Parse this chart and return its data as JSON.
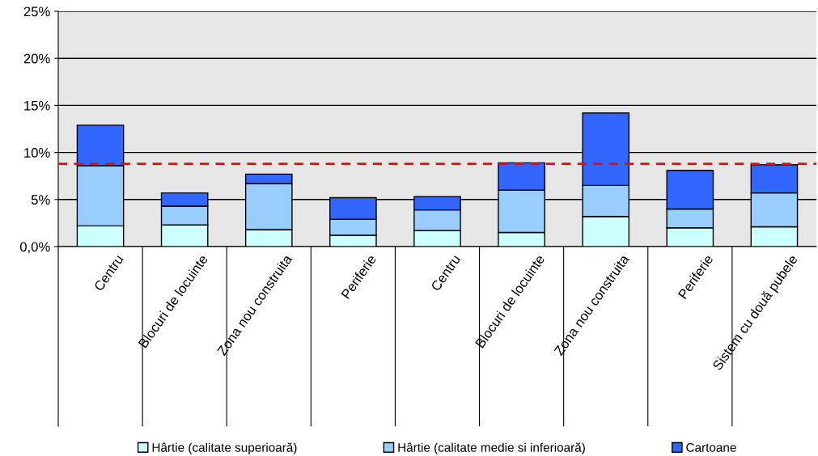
{
  "chart_data": {
    "type": "bar",
    "stacked": true,
    "categories": [
      "Centru",
      "Blocuri de locuinte",
      "Zona nou construita",
      "Periferie",
      "Centru",
      "Blocuri de locuinte",
      "Zona nou construita",
      "Periferie",
      "Sistem cu două pubele"
    ],
    "series": [
      {
        "name": "Hârtie (calitate superioară)",
        "color": "#ccffff",
        "values": [
          2.2,
          2.3,
          1.8,
          1.2,
          1.7,
          1.5,
          3.2,
          2.0,
          2.1
        ]
      },
      {
        "name": "Hârtie (calitate medie si inferioară)",
        "color": "#99ccff",
        "values": [
          6.4,
          2.0,
          4.9,
          1.7,
          2.2,
          4.5,
          3.3,
          2.0,
          3.6
        ]
      },
      {
        "name": "Cartoane",
        "color": "#3366ff",
        "values": [
          4.3,
          1.4,
          1.0,
          2.3,
          1.4,
          2.9,
          7.7,
          4.1,
          3.0
        ]
      }
    ],
    "ylim": [
      0,
      25
    ],
    "yticks": [
      {
        "value": 0,
        "label": "0,0%"
      },
      {
        "value": 5,
        "label": "5%"
      },
      {
        "value": 10,
        "label": "10%"
      },
      {
        "value": 15,
        "label": "15%"
      },
      {
        "value": 20,
        "label": "20%"
      },
      {
        "value": 25,
        "label": "25%"
      }
    ],
    "ref_lines": [
      {
        "axis": "y",
        "value": 8.8,
        "color": "#ff0000",
        "line_style": "dashed"
      }
    ],
    "grid": "y",
    "legend": "bottom"
  }
}
